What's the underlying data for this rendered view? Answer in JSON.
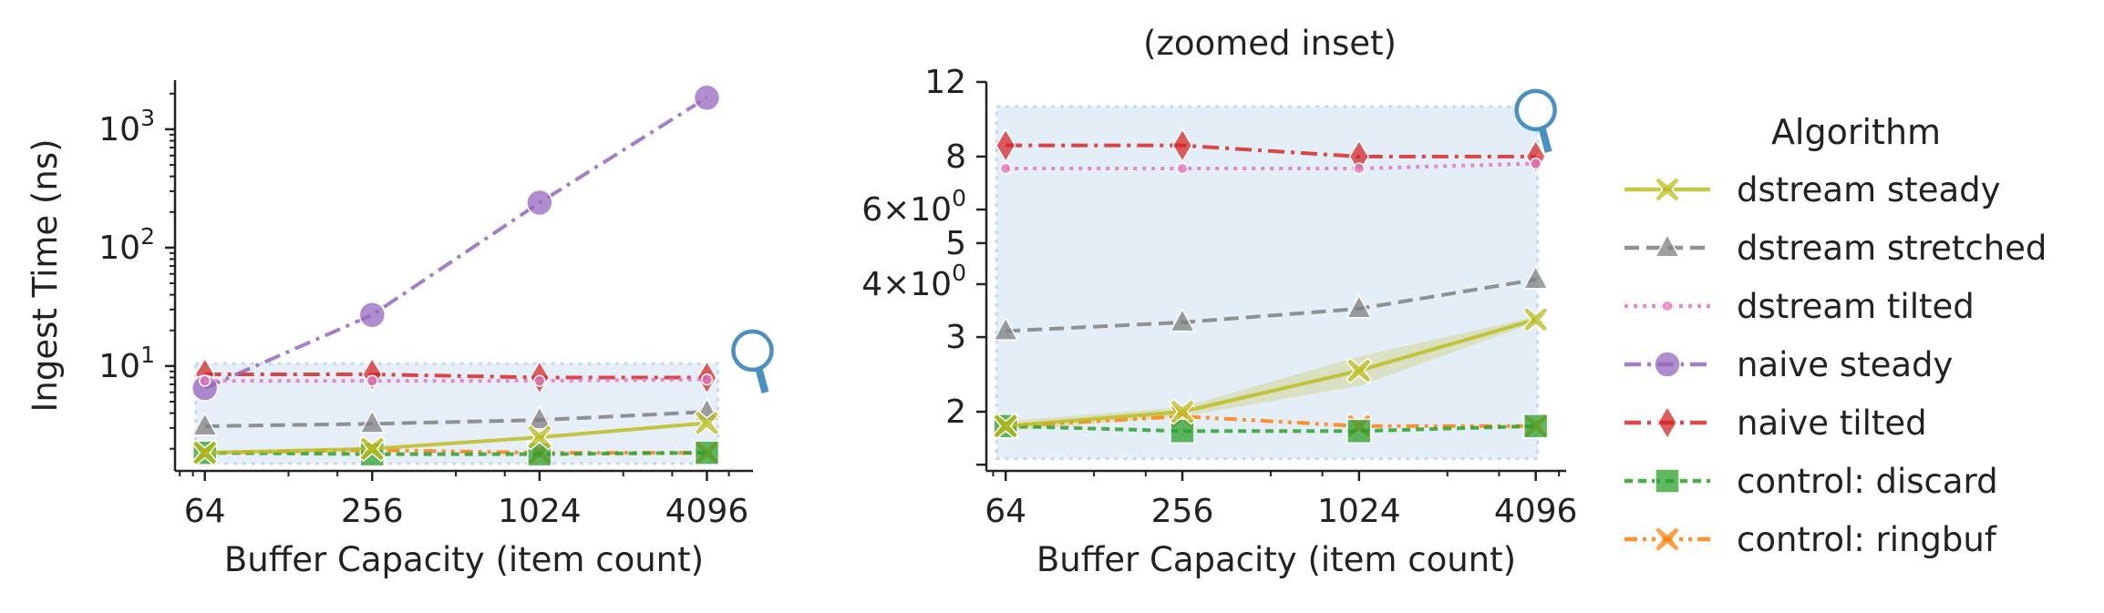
{
  "chart_data": [
    {
      "type": "line",
      "xscale": "log2",
      "yscale": "log10",
      "xlabel": "Buffer Capacity (item count)",
      "ylabel": "Ingest Time (ns)",
      "x": [
        64,
        256,
        1024,
        4096
      ],
      "xtick_labels": [
        "64",
        "256",
        "1024",
        "4096"
      ],
      "ytick_labels": [
        {
          "value": 10,
          "base": "10",
          "exp": "1"
        },
        {
          "value": 100,
          "base": "10",
          "exp": "2"
        },
        {
          "value": 1000,
          "base": "10",
          "exp": "3"
        }
      ],
      "xlim": [
        50,
        6000
      ],
      "ylim": [
        1.3,
        2600
      ],
      "zoom_region": {
        "xlim": [
          64,
          4096
        ],
        "ylim": [
          1.5,
          10.5
        ]
      },
      "series": [
        {
          "name": "dstream steady",
          "values": [
            1.85,
            2.0,
            2.5,
            3.3
          ]
        },
        {
          "name": "dstream stretched",
          "values": [
            3.1,
            3.25,
            3.5,
            4.1
          ]
        },
        {
          "name": "dstream tilted",
          "values": [
            7.5,
            7.5,
            7.5,
            7.7
          ]
        },
        {
          "name": "naive steady",
          "values": [
            6.5,
            27,
            240,
            1850
          ]
        },
        {
          "name": "naive tilted",
          "values": [
            8.5,
            8.5,
            8.0,
            8.0
          ]
        },
        {
          "name": "control: discard",
          "values": [
            1.85,
            1.8,
            1.8,
            1.85
          ]
        },
        {
          "name": "control: ringbuf",
          "values": [
            1.85,
            1.95,
            1.85,
            1.85
          ]
        }
      ],
      "grid": false
    },
    {
      "type": "line",
      "title": "(zoomed inset)",
      "xscale": "log2",
      "yscale": "log10",
      "xlabel": "Buffer Capacity (item count)",
      "x": [
        64,
        256,
        1024,
        4096
      ],
      "xtick_labels": [
        "64",
        "256",
        "1024",
        "4096"
      ],
      "ytick_labels": [
        {
          "value": 2,
          "text": "2"
        },
        {
          "value": 3,
          "text": "3"
        },
        {
          "value": 4,
          "text": "4×10",
          "exp": "0"
        },
        {
          "value": 5,
          "text": "5"
        },
        {
          "value": 6,
          "text": "6×10",
          "exp": "0"
        },
        {
          "value": 8,
          "text": "8"
        },
        {
          "value": 12,
          "text": "12"
        }
      ],
      "xlim": [
        55,
        5200
      ],
      "ylim": [
        1.45,
        12
      ],
      "series": [
        {
          "name": "dstream steady",
          "values": [
            1.85,
            2.0,
            2.5,
            3.3
          ],
          "band": [
            [
              1.8,
              1.9
            ],
            [
              1.95,
              2.05
            ],
            [
              2.3,
              2.7
            ],
            [
              3.25,
              3.35
            ]
          ]
        },
        {
          "name": "dstream stretched",
          "values": [
            3.1,
            3.25,
            3.5,
            4.1
          ]
        },
        {
          "name": "dstream tilted",
          "values": [
            7.5,
            7.5,
            7.5,
            7.7
          ]
        },
        {
          "name": "naive tilted",
          "values": [
            8.5,
            8.5,
            8.0,
            8.0
          ]
        },
        {
          "name": "control: discard",
          "values": [
            1.85,
            1.8,
            1.8,
            1.85
          ]
        },
        {
          "name": "control: ringbuf",
          "values": [
            1.85,
            1.95,
            1.85,
            1.85
          ]
        }
      ],
      "grid": false
    }
  ],
  "legend": {
    "title": "Algorithm",
    "placement": "right",
    "entries": [
      {
        "label": "dstream steady",
        "color": "#bcbd22",
        "marker": "x",
        "dash": "solid"
      },
      {
        "label": "dstream stretched",
        "color": "#7f7f7f",
        "marker": "triangle",
        "dash": "dashed"
      },
      {
        "label": "dstream tilted",
        "color": "#e377c2",
        "marker": "dot",
        "dash": "dotted"
      },
      {
        "label": "naive steady",
        "color": "#9467bd",
        "marker": "circle",
        "dash": "dashdot"
      },
      {
        "label": "naive tilted",
        "color": "#d62728",
        "marker": "diamond",
        "dash": "dashdot"
      },
      {
        "label": "control: discard",
        "color": "#2ca02c",
        "marker": "square",
        "dash": "densedash"
      },
      {
        "label": "control: ringbuf",
        "color": "#ff7f0e",
        "marker": "x",
        "dash": "dashdotdot"
      }
    ]
  },
  "colors": {
    "zoom_fill": "#dbe8f4",
    "zoom_edge": "#c5d9ec",
    "magnifier": "#4a90c2",
    "axis": "#222222"
  },
  "icons": [
    "magnifier-icon",
    "magnifier-icon"
  ]
}
